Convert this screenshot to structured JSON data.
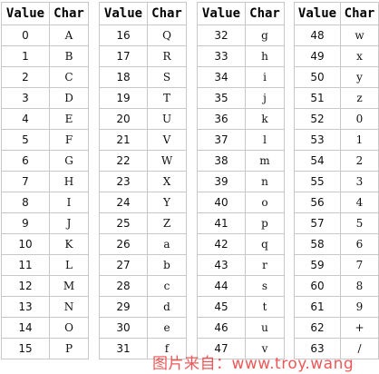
{
  "headers": {
    "value": "Value",
    "char": "Char"
  },
  "tables": [
    {
      "rows": [
        {
          "value": "0",
          "char": "A"
        },
        {
          "value": "1",
          "char": "B"
        },
        {
          "value": "2",
          "char": "C"
        },
        {
          "value": "3",
          "char": "D"
        },
        {
          "value": "4",
          "char": "E"
        },
        {
          "value": "5",
          "char": "F"
        },
        {
          "value": "6",
          "char": "G"
        },
        {
          "value": "7",
          "char": "H"
        },
        {
          "value": "8",
          "char": "I"
        },
        {
          "value": "9",
          "char": "J"
        },
        {
          "value": "10",
          "char": "K"
        },
        {
          "value": "11",
          "char": "L"
        },
        {
          "value": "12",
          "char": "M"
        },
        {
          "value": "13",
          "char": "N"
        },
        {
          "value": "14",
          "char": "O"
        },
        {
          "value": "15",
          "char": "P"
        }
      ]
    },
    {
      "rows": [
        {
          "value": "16",
          "char": "Q"
        },
        {
          "value": "17",
          "char": "R"
        },
        {
          "value": "18",
          "char": "S"
        },
        {
          "value": "19",
          "char": "T"
        },
        {
          "value": "20",
          "char": "U"
        },
        {
          "value": "21",
          "char": "V"
        },
        {
          "value": "22",
          "char": "W"
        },
        {
          "value": "23",
          "char": "X"
        },
        {
          "value": "24",
          "char": "Y"
        },
        {
          "value": "25",
          "char": "Z"
        },
        {
          "value": "26",
          "char": "a"
        },
        {
          "value": "27",
          "char": "b"
        },
        {
          "value": "28",
          "char": "c"
        },
        {
          "value": "29",
          "char": "d"
        },
        {
          "value": "30",
          "char": "e"
        },
        {
          "value": "31",
          "char": "f"
        }
      ]
    },
    {
      "rows": [
        {
          "value": "32",
          "char": "g"
        },
        {
          "value": "33",
          "char": "h"
        },
        {
          "value": "34",
          "char": "i"
        },
        {
          "value": "35",
          "char": "j"
        },
        {
          "value": "36",
          "char": "k"
        },
        {
          "value": "37",
          "char": "l"
        },
        {
          "value": "38",
          "char": "m"
        },
        {
          "value": "39",
          "char": "n"
        },
        {
          "value": "40",
          "char": "o"
        },
        {
          "value": "41",
          "char": "p"
        },
        {
          "value": "42",
          "char": "q"
        },
        {
          "value": "43",
          "char": "r"
        },
        {
          "value": "44",
          "char": "s"
        },
        {
          "value": "45",
          "char": "t"
        },
        {
          "value": "46",
          "char": "u"
        },
        {
          "value": "47",
          "char": "v"
        }
      ]
    },
    {
      "rows": [
        {
          "value": "48",
          "char": "w"
        },
        {
          "value": "49",
          "char": "x"
        },
        {
          "value": "50",
          "char": "y"
        },
        {
          "value": "51",
          "char": "z"
        },
        {
          "value": "52",
          "char": "0"
        },
        {
          "value": "53",
          "char": "1"
        },
        {
          "value": "54",
          "char": "2"
        },
        {
          "value": "55",
          "char": "3"
        },
        {
          "value": "56",
          "char": "4"
        },
        {
          "value": "57",
          "char": "5"
        },
        {
          "value": "58",
          "char": "6"
        },
        {
          "value": "59",
          "char": "7"
        },
        {
          "value": "60",
          "char": "8"
        },
        {
          "value": "61",
          "char": "9"
        },
        {
          "value": "62",
          "char": "+"
        },
        {
          "value": "63",
          "char": "/"
        }
      ]
    }
  ],
  "watermark": "图片来自：www.troy.wang",
  "colors": {
    "border": "#c8c8c8",
    "watermark": "#e82828"
  }
}
